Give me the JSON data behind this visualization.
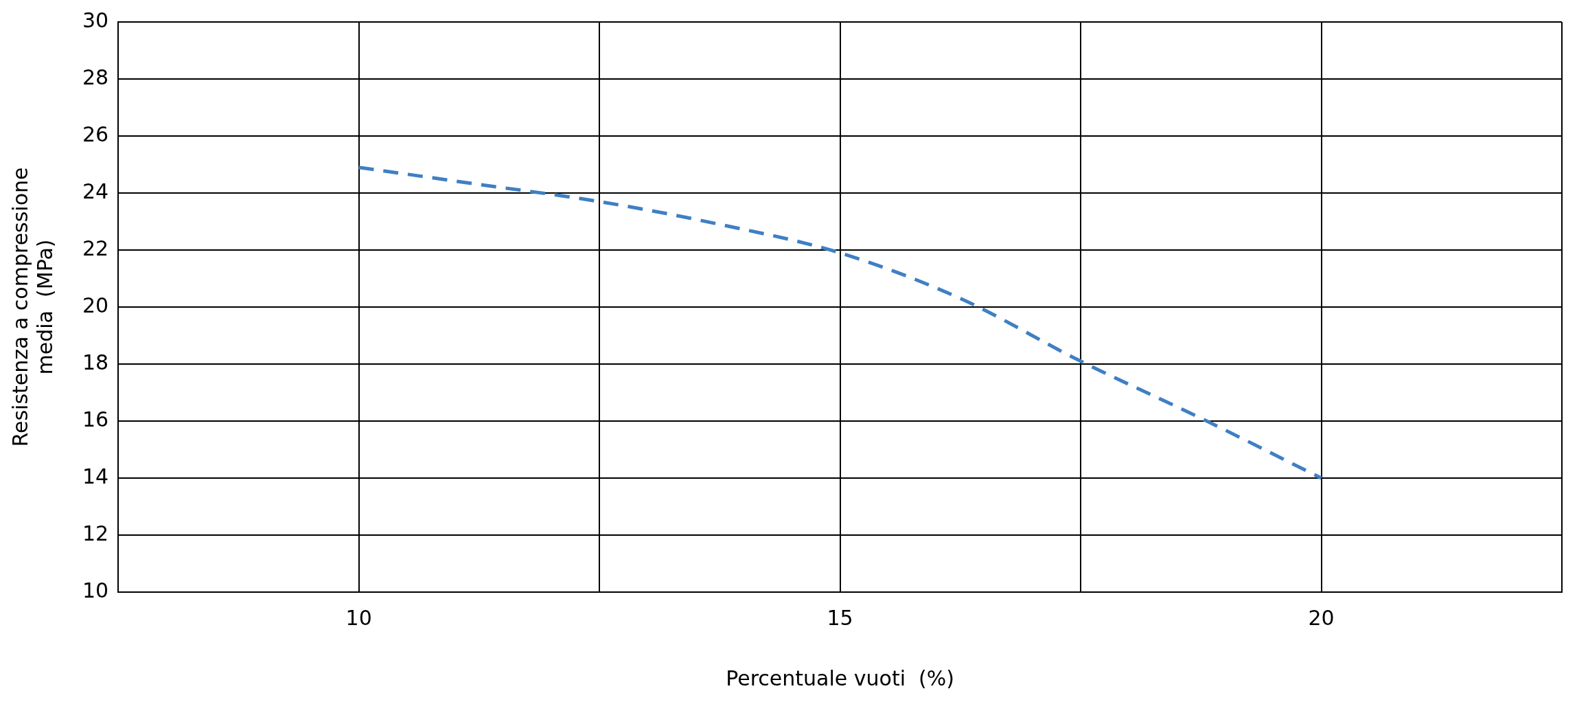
{
  "chart_data": {
    "type": "line",
    "xlabel": "Percentuale vuoti  (%)",
    "ylabel": "Resistenza a compressione\nmedia  (MPa)",
    "x": [
      10,
      11.25,
      12.5,
      13.75,
      15,
      16.25,
      17.5,
      18.75,
      20
    ],
    "series": [
      {
        "color": "#3f7fc4",
        "values": [
          24.9,
          24.3,
          23.7,
          22.9,
          21.9,
          20.3,
          18.1,
          16.1,
          14.0
        ]
      }
    ],
    "xlim": [
      7.5,
      22.5
    ],
    "xticks": [
      {
        "value": 7.5,
        "label": null
      },
      10,
      {
        "value": 12.5,
        "label": null
      },
      15,
      {
        "value": 17.5,
        "label": null
      },
      20,
      {
        "value": 22.5,
        "label": null
      }
    ],
    "ylim": [
      10,
      30
    ],
    "yticks": [
      10,
      12,
      14,
      16,
      18,
      20,
      22,
      24,
      26,
      28,
      30
    ],
    "grid": true,
    "legend": false,
    "marker": "none",
    "line_style": "dashed"
  }
}
